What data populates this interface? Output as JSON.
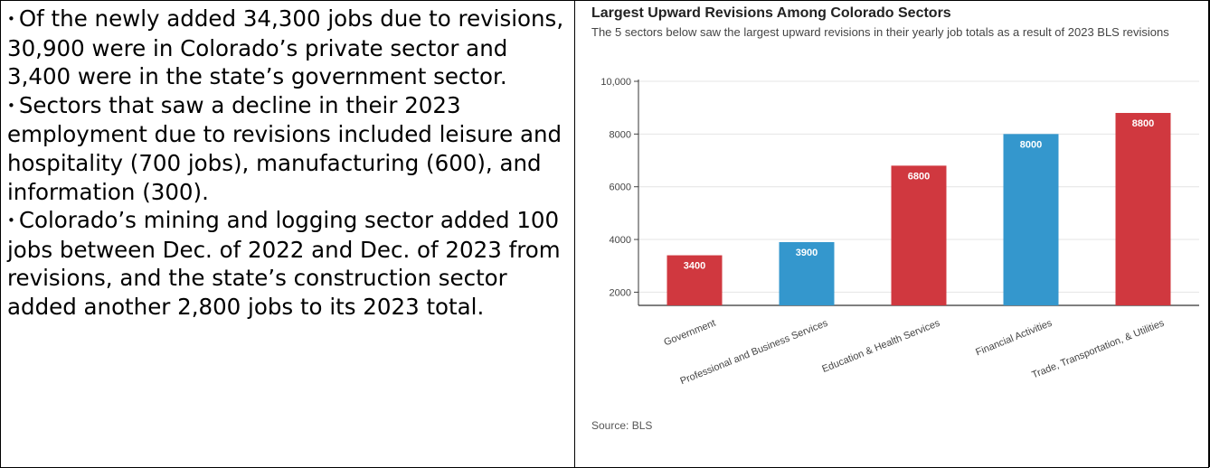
{
  "left_text": {
    "bullets": [
      "Of the newly added 34,300 jobs due to revisions, 30,900 were in Colorado’s private sector and 3,400 were in the state’s government sector.",
      "Sectors that saw a decline in their 2023 employment due to revisions included leisure and hospitality (700 jobs), manufacturing (600), and information (300).",
      "Colorado’s mining and logging sector added 100 jobs between Dec. of 2022 and Dec. of 2023 from revisions, and the state’s construction sector added another 2,800 jobs to its 2023 total."
    ],
    "bullet_glyph": "•"
  },
  "chart_data": {
    "type": "bar",
    "title": "Largest Upward Revisions Among Colorado Sectors",
    "subtitle": "The 5 sectors below saw the largest upward revisions in their yearly job totals as a result of 2023 BLS revisions",
    "source": "Source: BLS",
    "categories": [
      "Government",
      "Professional and Business Services",
      "Education & Health Services",
      "Financial Activities",
      "Trade, Transportation, & Utilities"
    ],
    "values": [
      3400,
      3900,
      6800,
      8000,
      8800
    ],
    "data_labels": [
      "3400",
      "3900",
      "6800",
      "8000",
      "8800"
    ],
    "bar_colors": [
      "#d0383f",
      "#3497cd",
      "#d0383f",
      "#3497cd",
      "#d0383f"
    ],
    "ylim": [
      1500,
      10000
    ],
    "yticks": [
      2000,
      4000,
      6000,
      8000,
      10000
    ],
    "ytick_labels": [
      "2000",
      "4000",
      "6000",
      "8000",
      "10,000"
    ],
    "xlabel": "",
    "ylabel": "",
    "grid": true,
    "legend": "none"
  }
}
